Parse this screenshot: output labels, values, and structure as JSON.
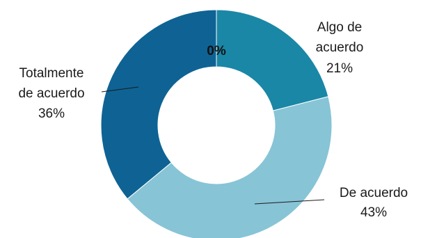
{
  "chart_data": {
    "type": "pie",
    "variant": "donut",
    "slices": [
      {
        "label": [
          "Algo de",
          "acuerdo"
        ],
        "value_label": "21%",
        "value": 21,
        "color": "#1a87a6"
      },
      {
        "label": [
          "De acuerdo"
        ],
        "value_label": "43%",
        "value": 43,
        "color": "#87c4d6"
      },
      {
        "label": [
          "Totalmente",
          "de acuerdo"
        ],
        "value_label": "36%",
        "value": 36,
        "color": "#0e6394"
      },
      {
        "label": [],
        "value_label": "0%",
        "value": 0,
        "color": "#0e6394"
      }
    ],
    "start_angle": "12 o'clock",
    "direction": "clockwise",
    "legend": "none"
  }
}
